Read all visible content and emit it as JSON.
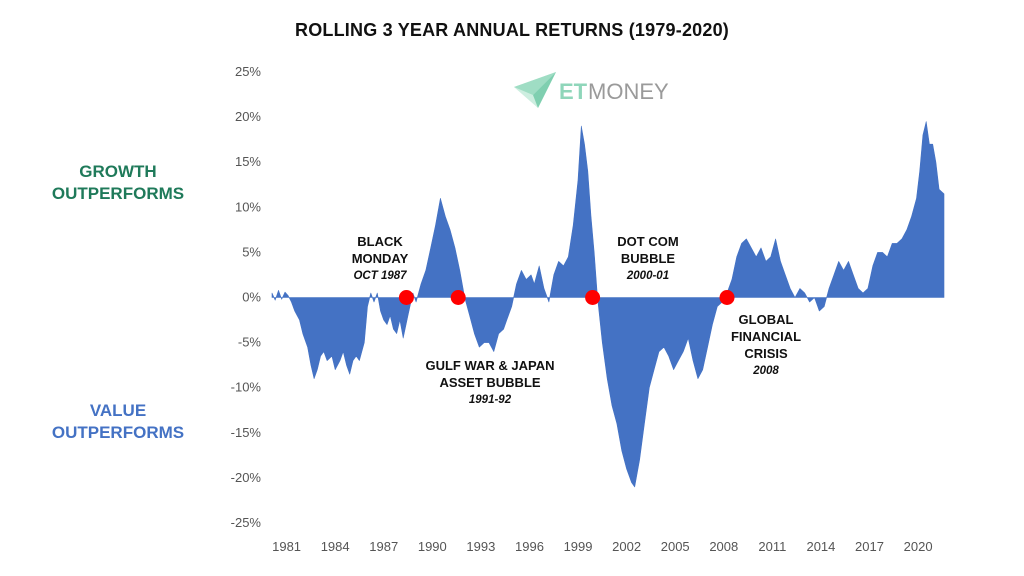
{
  "colors": {
    "area": "#4472C4",
    "marker": "#FF0000",
    "growth_label": "#1f7a5a",
    "value_label": "#4472C4",
    "logo_accent": "#8fd6ba"
  },
  "labels": {
    "growth": [
      "GROWTH",
      "OUTPERFORMS"
    ],
    "value": [
      "VALUE",
      "OUTPERFORMS"
    ]
  },
  "logo": {
    "et": "ET",
    "money": "MONEY",
    "icon": "paper-plane-icon"
  },
  "chart_data": {
    "type": "area",
    "title": "ROLLING 3 YEAR ANNUAL RETURNS (1979-2020)",
    "xlabel": "",
    "ylabel": "",
    "ylim": [
      -25,
      25
    ],
    "xlim": [
      1980.1,
      2021.6
    ],
    "y_ticks": [
      "25%",
      "20%",
      "15%",
      "10%",
      "5%",
      "0%",
      "-5%",
      "-10%",
      "-15%",
      "-20%",
      "-25%"
    ],
    "x_ticks": [
      "1981",
      "1984",
      "1987",
      "1990",
      "1993",
      "1996",
      "1999",
      "2002",
      "2005",
      "2008",
      "2011",
      "2014",
      "2017",
      "2020"
    ],
    "grid": false,
    "legend": "none",
    "series": [
      {
        "x": [
          1980.1,
          1980.3,
          1980.5,
          1980.7,
          1980.9,
          1981.1,
          1981.3,
          1981.5,
          1981.8,
          1982.0,
          1982.3,
          1982.5,
          1982.7,
          1982.9,
          1983.1,
          1983.3,
          1983.5,
          1983.8,
          1984.0,
          1984.3,
          1984.5,
          1984.7,
          1984.9,
          1985.1,
          1985.3,
          1985.5,
          1985.8,
          1986.0,
          1986.2,
          1986.4,
          1986.6,
          1986.8,
          1987.0,
          1987.2,
          1987.4,
          1987.6,
          1987.8,
          1988.0,
          1988.2,
          1988.5,
          1988.8,
          1989.0,
          1989.3,
          1989.6,
          1989.9,
          1990.2,
          1990.5,
          1990.8,
          1991.1,
          1991.4,
          1991.7,
          1992.0,
          1992.3,
          1992.6,
          1992.9,
          1993.2,
          1993.5,
          1993.8,
          1994.1,
          1994.4,
          1994.6,
          1994.9,
          1995.2,
          1995.5,
          1995.8,
          1996.1,
          1996.3,
          1996.6,
          1996.9,
          1997.2,
          1997.5,
          1997.8,
          1998.1,
          1998.4,
          1998.7,
          1999.0,
          1999.2,
          1999.4,
          1999.6,
          1999.8,
          2000.0,
          2000.2,
          2000.5,
          2000.8,
          2001.1,
          2001.4,
          2001.7,
          2002.0,
          2002.3,
          2002.5,
          2002.8,
          2003.1,
          2003.4,
          2003.7,
          2004.0,
          2004.3,
          2004.6,
          2004.9,
          2005.2,
          2005.5,
          2005.8,
          2006.1,
          2006.4,
          2006.7,
          2007.0,
          2007.3,
          2007.6,
          2007.9,
          2008.2,
          2008.5,
          2008.8,
          2009.1,
          2009.4,
          2009.7,
          2010.0,
          2010.3,
          2010.6,
          2010.9,
          2011.2,
          2011.5,
          2011.8,
          2012.1,
          2012.4,
          2012.7,
          2013.0,
          2013.3,
          2013.6,
          2013.9,
          2014.2,
          2014.5,
          2014.8,
          2015.1,
          2015.4,
          2015.7,
          2016.0,
          2016.3,
          2016.6,
          2016.9,
          2017.2,
          2017.5,
          2017.8,
          2018.1,
          2018.4,
          2018.7,
          2019.0,
          2019.3,
          2019.6,
          2019.9,
          2020.1,
          2020.3,
          2020.5,
          2020.7,
          2020.9,
          2021.1,
          2021.3,
          2021.6
        ],
        "y": [
          0.5,
          -0.3,
          0.8,
          -0.2,
          0.6,
          0.2,
          -0.5,
          -1.5,
          -2.5,
          -4.0,
          -5.5,
          -7.5,
          -9.0,
          -8.0,
          -6.5,
          -6.0,
          -7.0,
          -6.5,
          -8.0,
          -7.0,
          -6.0,
          -7.5,
          -8.5,
          -7.0,
          -6.5,
          -7.0,
          -5.0,
          -1.0,
          0.5,
          -0.5,
          0.5,
          -1.5,
          -2.5,
          -3.0,
          -2.0,
          -3.5,
          -4.0,
          -2.5,
          -4.5,
          -2.0,
          0.5,
          -0.5,
          1.5,
          3.0,
          5.5,
          8.0,
          11.0,
          9.0,
          7.5,
          5.5,
          3.0,
          0.0,
          -2.0,
          -4.0,
          -5.5,
          -5.0,
          -5.0,
          -6.0,
          -4.0,
          -3.5,
          -2.5,
          -1.0,
          1.5,
          3.0,
          2.0,
          2.5,
          1.5,
          3.5,
          1.0,
          -0.5,
          2.5,
          4.0,
          3.5,
          4.5,
          8.0,
          13.0,
          19.0,
          17.0,
          14.0,
          9.0,
          5.0,
          0.0,
          -5.0,
          -9.0,
          -12.0,
          -14.0,
          -17.0,
          -19.0,
          -20.5,
          -21.0,
          -18.0,
          -14.0,
          -10.0,
          -8.0,
          -6.0,
          -5.5,
          -6.5,
          -8.0,
          -7.0,
          -6.0,
          -4.5,
          -7.0,
          -9.0,
          -8.0,
          -5.5,
          -3.0,
          -1.0,
          -0.5,
          0.5,
          2.0,
          4.5,
          6.0,
          6.5,
          5.5,
          4.5,
          5.5,
          4.0,
          4.5,
          6.5,
          4.0,
          2.5,
          1.0,
          0.0,
          1.0,
          0.5,
          -0.5,
          0.0,
          -1.5,
          -1.0,
          1.0,
          2.5,
          4.0,
          3.0,
          4.0,
          2.5,
          1.0,
          0.5,
          1.0,
          3.5,
          5.0,
          5.0,
          4.5,
          6.0,
          6.0,
          6.5,
          7.5,
          9.0,
          11.0,
          14.0,
          18.0,
          19.5,
          17.0,
          17.0,
          15.0,
          12.0,
          11.5
        ]
      }
    ],
    "annotations": [
      {
        "x": 1988.4,
        "y": 0,
        "name": [
          "BLACK",
          "MONDAY"
        ],
        "date": "OCT 1987"
      },
      {
        "x": 1991.6,
        "y": 0,
        "name": [
          "GULF WAR & JAPAN",
          "ASSET BUBBLE"
        ],
        "date": "1991-92"
      },
      {
        "x": 1999.9,
        "y": 0,
        "name": [
          "DOT COM",
          "BUBBLE"
        ],
        "date": "2000-01"
      },
      {
        "x": 2008.2,
        "y": 0,
        "name": [
          "GLOBAL",
          "FINANCIAL",
          "CRISIS"
        ],
        "date": "2008"
      }
    ]
  }
}
